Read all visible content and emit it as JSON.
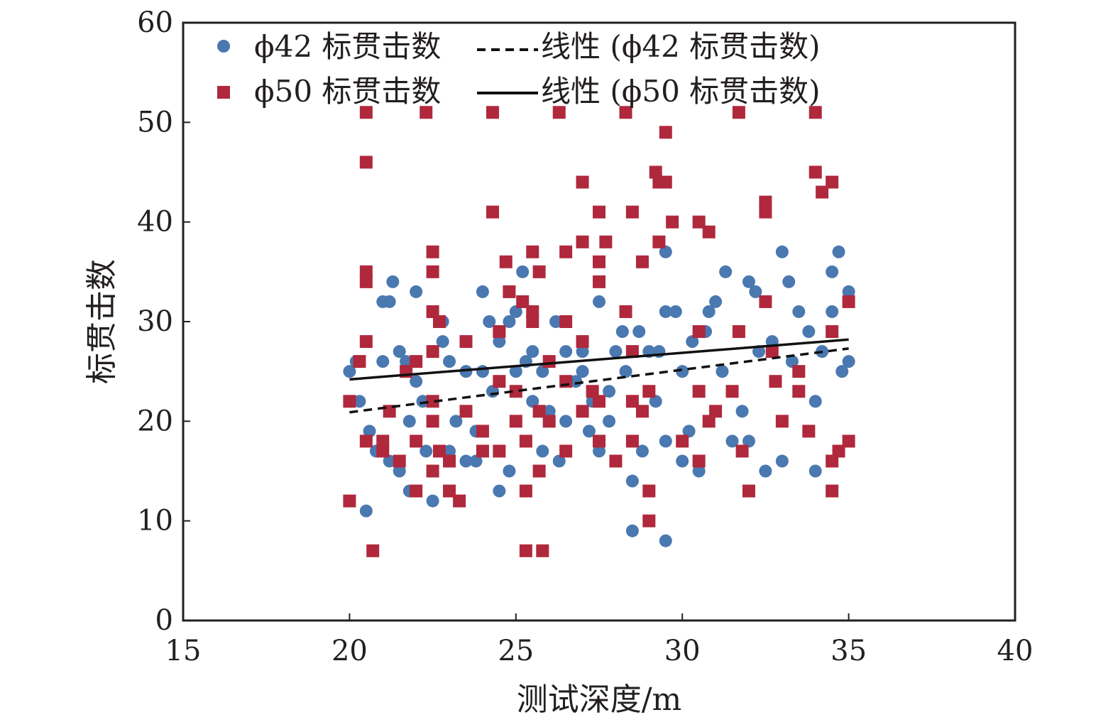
{
  "chart_data": {
    "type": "scatter",
    "xlabel": "测试深度/m",
    "ylabel": "标贯击数",
    "xlim": [
      15,
      40
    ],
    "ylim": [
      0,
      60
    ],
    "xticks": [
      "15",
      "20",
      "25",
      "30",
      "35",
      "40"
    ],
    "yticks": [
      "0",
      "10",
      "20",
      "30",
      "40",
      "50",
      "60"
    ],
    "grid": false,
    "legend_position": "top-left",
    "legend": [
      {
        "label": "ϕ42 标贯击数",
        "marker": "circle"
      },
      {
        "label": "线性 (ϕ42 标贯击数)",
        "line": "dashed"
      },
      {
        "label": "ϕ50 标贯击数",
        "marker": "square"
      },
      {
        "label": "线性 (ϕ50 标贯击数)",
        "line": "solid"
      }
    ],
    "colors": {
      "phi42": "#4a78b0",
      "phi50": "#b0283c",
      "trend": "#111111",
      "frame": "#231f20"
    },
    "series": [
      {
        "name": "ϕ42 标贯击数",
        "marker": "circle",
        "points": [
          [
            20,
            25
          ],
          [
            20.2,
            26
          ],
          [
            20.3,
            22
          ],
          [
            20.5,
            11
          ],
          [
            20.6,
            19
          ],
          [
            20.8,
            17
          ],
          [
            21,
            26
          ],
          [
            21,
            32
          ],
          [
            21.2,
            32
          ],
          [
            21.3,
            34
          ],
          [
            21.2,
            16
          ],
          [
            21.5,
            15
          ],
          [
            21.5,
            27
          ],
          [
            21.7,
            26
          ],
          [
            21.8,
            13
          ],
          [
            21.8,
            20
          ],
          [
            22,
            33
          ],
          [
            22,
            24
          ],
          [
            22.2,
            22
          ],
          [
            22.3,
            17
          ],
          [
            22.5,
            12
          ],
          [
            22.5,
            31
          ],
          [
            22.8,
            30
          ],
          [
            22.8,
            28
          ],
          [
            23,
            26
          ],
          [
            23,
            17
          ],
          [
            23.2,
            20
          ],
          [
            23.5,
            25
          ],
          [
            23.5,
            16
          ],
          [
            23.8,
            19
          ],
          [
            23.8,
            16
          ],
          [
            24,
            25
          ],
          [
            24,
            33
          ],
          [
            24.2,
            30
          ],
          [
            24.3,
            23
          ],
          [
            24.5,
            13
          ],
          [
            24.5,
            28
          ],
          [
            24.8,
            15
          ],
          [
            24.8,
            30
          ],
          [
            25,
            25
          ],
          [
            25,
            31
          ],
          [
            25.2,
            35
          ],
          [
            25.3,
            26
          ],
          [
            25.5,
            27
          ],
          [
            25.5,
            22
          ],
          [
            25.8,
            17
          ],
          [
            25.8,
            25
          ],
          [
            26,
            21
          ],
          [
            26.2,
            30
          ],
          [
            26.3,
            16
          ],
          [
            26.5,
            27
          ],
          [
            26.5,
            20
          ],
          [
            26.8,
            24
          ],
          [
            27,
            27
          ],
          [
            27,
            25
          ],
          [
            27.2,
            19
          ],
          [
            27.3,
            22
          ],
          [
            27.5,
            32
          ],
          [
            27.5,
            17
          ],
          [
            27.8,
            23
          ],
          [
            27.8,
            20
          ],
          [
            28,
            27
          ],
          [
            28.2,
            29
          ],
          [
            28.3,
            25
          ],
          [
            28.5,
            14
          ],
          [
            28.5,
            9
          ],
          [
            28.7,
            29
          ],
          [
            28.8,
            17
          ],
          [
            29,
            27
          ],
          [
            29.2,
            22
          ],
          [
            29.3,
            27
          ],
          [
            29.5,
            37
          ],
          [
            29.5,
            31
          ],
          [
            29.5,
            18
          ],
          [
            29.5,
            8
          ],
          [
            29.8,
            31
          ],
          [
            30,
            16
          ],
          [
            30,
            25
          ],
          [
            30.2,
            19
          ],
          [
            30.3,
            28
          ],
          [
            30.5,
            15
          ],
          [
            30.7,
            29
          ],
          [
            30.8,
            31
          ],
          [
            31,
            32
          ],
          [
            31.2,
            25
          ],
          [
            31.3,
            35
          ],
          [
            31.5,
            18
          ],
          [
            31.8,
            21
          ],
          [
            32,
            34
          ],
          [
            32,
            18
          ],
          [
            32.2,
            33
          ],
          [
            32.3,
            27
          ],
          [
            32.5,
            15
          ],
          [
            32.7,
            28
          ],
          [
            33,
            37
          ],
          [
            33,
            16
          ],
          [
            33.2,
            34
          ],
          [
            33.3,
            26
          ],
          [
            33.5,
            31
          ],
          [
            33.8,
            29
          ],
          [
            34,
            22
          ],
          [
            34,
            15
          ],
          [
            34.2,
            27
          ],
          [
            34.5,
            31
          ],
          [
            34.5,
            35
          ],
          [
            34.7,
            37
          ],
          [
            34.8,
            25
          ],
          [
            35,
            26
          ],
          [
            35,
            33
          ]
        ]
      },
      {
        "name": "ϕ50 标贯击数",
        "marker": "square",
        "points": [
          [
            20,
            12
          ],
          [
            20,
            22
          ],
          [
            20.3,
            26
          ],
          [
            20.5,
            51
          ],
          [
            20.5,
            46
          ],
          [
            20.5,
            35
          ],
          [
            20.5,
            34
          ],
          [
            20.5,
            28
          ],
          [
            20.5,
            18
          ],
          [
            20.7,
            7
          ],
          [
            21,
            18
          ],
          [
            21,
            17
          ],
          [
            21.2,
            21
          ],
          [
            21.5,
            16
          ],
          [
            21.7,
            25
          ],
          [
            22,
            26
          ],
          [
            22,
            18
          ],
          [
            22,
            13
          ],
          [
            22.3,
            51
          ],
          [
            22.5,
            37
          ],
          [
            22.5,
            35
          ],
          [
            22.5,
            31
          ],
          [
            22.5,
            27
          ],
          [
            22.5,
            22
          ],
          [
            22.5,
            20
          ],
          [
            22.5,
            15
          ],
          [
            22.7,
            30
          ],
          [
            22.7,
            17
          ],
          [
            23,
            16
          ],
          [
            23,
            13
          ],
          [
            23.3,
            12
          ],
          [
            23.5,
            28
          ],
          [
            23.5,
            21
          ],
          [
            24,
            19
          ],
          [
            24,
            17
          ],
          [
            24.3,
            51
          ],
          [
            24.3,
            41
          ],
          [
            24.5,
            29
          ],
          [
            24.5,
            24
          ],
          [
            24.5,
            17
          ],
          [
            24.7,
            36
          ],
          [
            24.8,
            33
          ],
          [
            25,
            23
          ],
          [
            25,
            20
          ],
          [
            25.2,
            32
          ],
          [
            25.3,
            18
          ],
          [
            25.3,
            13
          ],
          [
            25.3,
            7
          ],
          [
            25.5,
            37
          ],
          [
            25.5,
            31
          ],
          [
            25.5,
            30
          ],
          [
            25.7,
            35
          ],
          [
            25.7,
            21
          ],
          [
            25.7,
            15
          ],
          [
            25.8,
            7
          ],
          [
            26,
            26
          ],
          [
            26,
            20
          ],
          [
            26.3,
            51
          ],
          [
            26.5,
            37
          ],
          [
            26.5,
            30
          ],
          [
            26.5,
            24
          ],
          [
            26.5,
            17
          ],
          [
            27,
            44
          ],
          [
            27,
            38
          ],
          [
            27,
            28
          ],
          [
            27,
            21
          ],
          [
            27.3,
            23
          ],
          [
            27.5,
            41
          ],
          [
            27.5,
            36
          ],
          [
            27.5,
            34
          ],
          [
            27.5,
            22
          ],
          [
            27.5,
            18
          ],
          [
            27.7,
            38
          ],
          [
            28,
            16
          ],
          [
            28.3,
            51
          ],
          [
            28.3,
            31
          ],
          [
            28.5,
            41
          ],
          [
            28.5,
            27
          ],
          [
            28.5,
            22
          ],
          [
            28.5,
            18
          ],
          [
            28.8,
            36
          ],
          [
            28.8,
            21
          ],
          [
            29,
            23
          ],
          [
            29,
            13
          ],
          [
            29,
            10
          ],
          [
            29.2,
            45
          ],
          [
            29.3,
            44
          ],
          [
            29.3,
            38
          ],
          [
            29.5,
            49
          ],
          [
            29.5,
            44
          ],
          [
            29.7,
            40
          ],
          [
            30,
            18
          ],
          [
            30.5,
            40
          ],
          [
            30.5,
            29
          ],
          [
            30.5,
            23
          ],
          [
            30.5,
            16
          ],
          [
            30.8,
            39
          ],
          [
            30.8,
            20
          ],
          [
            31,
            21
          ],
          [
            31.5,
            23
          ],
          [
            31.7,
            51
          ],
          [
            31.7,
            29
          ],
          [
            31.8,
            17
          ],
          [
            32,
            13
          ],
          [
            32.5,
            42
          ],
          [
            32.5,
            41
          ],
          [
            32.5,
            32
          ],
          [
            32.7,
            27
          ],
          [
            32.8,
            24
          ],
          [
            33,
            20
          ],
          [
            33.5,
            25
          ],
          [
            33.5,
            23
          ],
          [
            33.8,
            19
          ],
          [
            34,
            51
          ],
          [
            34,
            45
          ],
          [
            34.2,
            43
          ],
          [
            34.5,
            44
          ],
          [
            34.5,
            29
          ],
          [
            34.5,
            16
          ],
          [
            34.5,
            13
          ],
          [
            34.7,
            17
          ],
          [
            35,
            32
          ],
          [
            35,
            18
          ]
        ]
      }
    ],
    "trendlines": [
      {
        "series": "ϕ42 标贯击数",
        "style": "dashed",
        "x": [
          20,
          35
        ],
        "y": [
          20.9,
          27.3
        ]
      },
      {
        "series": "ϕ50 标贯击数",
        "style": "solid",
        "x": [
          20,
          35
        ],
        "y": [
          24.2,
          28.2
        ]
      }
    ]
  }
}
